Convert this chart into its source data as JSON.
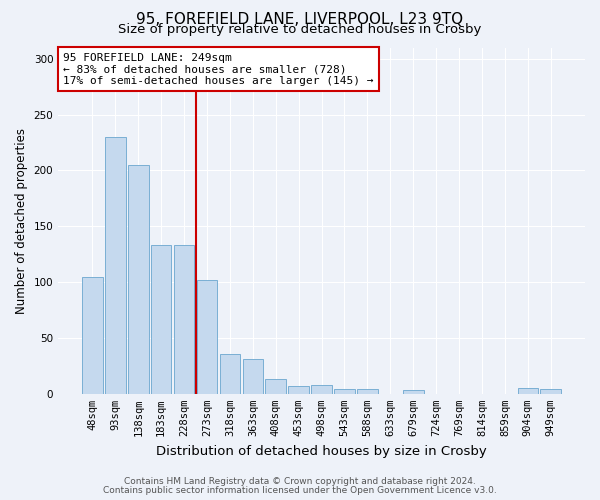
{
  "title1": "95, FOREFIELD LANE, LIVERPOOL, L23 9TQ",
  "title2": "Size of property relative to detached houses in Crosby",
  "xlabel": "Distribution of detached houses by size in Crosby",
  "ylabel": "Number of detached properties",
  "categories": [
    "48sqm",
    "93sqm",
    "138sqm",
    "183sqm",
    "228sqm",
    "273sqm",
    "318sqm",
    "363sqm",
    "408sqm",
    "453sqm",
    "498sqm",
    "543sqm",
    "588sqm",
    "633sqm",
    "679sqm",
    "724sqm",
    "769sqm",
    "814sqm",
    "859sqm",
    "904sqm",
    "949sqm"
  ],
  "values": [
    105,
    230,
    205,
    133,
    133,
    102,
    36,
    31,
    13,
    7,
    8,
    4,
    4,
    0,
    3,
    0,
    0,
    0,
    0,
    5,
    4
  ],
  "bar_color": "#c5d9ee",
  "bar_edgecolor": "#7aafd4",
  "vline_x": 4.5,
  "vline_color": "#cc0000",
  "annotation_line1": "95 FOREFIELD LANE: 249sqm",
  "annotation_line2": "← 83% of detached houses are smaller (728)",
  "annotation_line3": "17% of semi-detached houses are larger (145) →",
  "annotation_box_edgecolor": "#cc0000",
  "annotation_box_facecolor": "white",
  "yticks": [
    0,
    50,
    100,
    150,
    200,
    250,
    300
  ],
  "ylim": [
    0,
    310
  ],
  "footer1": "Contains HM Land Registry data © Crown copyright and database right 2024.",
  "footer2": "Contains public sector information licensed under the Open Government Licence v3.0.",
  "background_color": "#eef2f9",
  "title1_fontsize": 11,
  "title2_fontsize": 9.5,
  "xlabel_fontsize": 9.5,
  "ylabel_fontsize": 8.5,
  "tick_fontsize": 7.5,
  "footer_fontsize": 6.5,
  "annotation_fontsize": 8
}
